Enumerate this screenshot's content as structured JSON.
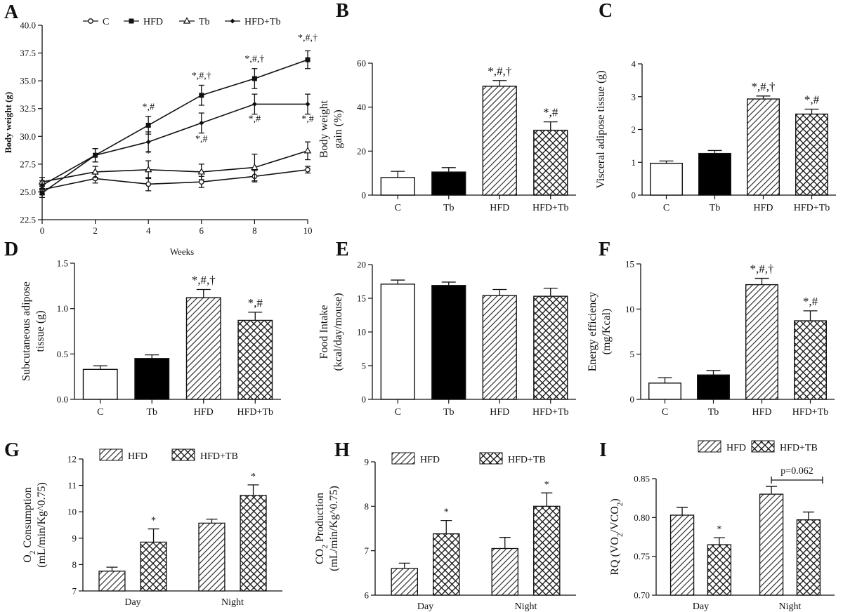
{
  "chart_data": [
    {
      "panel": "A",
      "type": "line",
      "xlabel": "Weeks",
      "ylabel": "Body weight (g)",
      "x": [
        0,
        2,
        4,
        6,
        8,
        10
      ],
      "xlim": [
        0,
        10
      ],
      "ylim": [
        22.5,
        40.0
      ],
      "xticks": [
        "0",
        "2",
        "4",
        "6",
        "8",
        "10"
      ],
      "yticks": [
        "22.5",
        "25.0",
        "27.5",
        "30.0",
        "32.5",
        "35.0",
        "37.5",
        "40.0"
      ],
      "series": [
        {
          "name": "C",
          "marker": "circle-open",
          "values": [
            25.2,
            26.2,
            25.7,
            25.9,
            26.4,
            27.0
          ],
          "errors": [
            0.4,
            0.4,
            0.6,
            0.5,
            0.5,
            0.3
          ]
        },
        {
          "name": "HFD",
          "marker": "square-filled",
          "values": [
            24.9,
            28.3,
            31.0,
            33.7,
            35.2,
            36.9
          ],
          "errors": [
            0.4,
            0.6,
            0.8,
            0.9,
            0.9,
            0.8
          ]
        },
        {
          "name": "Tb",
          "marker": "triangle-open",
          "values": [
            25.9,
            26.8,
            27.0,
            26.8,
            27.2,
            28.7
          ],
          "errors": [
            0.4,
            0.5,
            0.8,
            0.7,
            1.2,
            0.8
          ]
        },
        {
          "name": "HFD+Tb",
          "marker": "diamond-filled",
          "values": [
            25.6,
            28.3,
            29.5,
            31.2,
            32.9,
            32.9
          ],
          "errors": [
            0.4,
            0.6,
            0.9,
            0.9,
            0.9,
            0.9
          ]
        }
      ],
      "annotations": [
        {
          "text": "*,#",
          "x": 4,
          "y": 32.4
        },
        {
          "text": "*",
          "x": 4,
          "y": 28.2
        },
        {
          "text": "*,#,†",
          "x": 6,
          "y": 35.2
        },
        {
          "text": "*,#",
          "x": 6,
          "y": 29.5
        },
        {
          "text": "*,#,†",
          "x": 8,
          "y": 36.7
        },
        {
          "text": "*,#",
          "x": 8,
          "y": 31.3
        },
        {
          "text": "*,#,†",
          "x": 10,
          "y": 38.6
        },
        {
          "text": "*,#",
          "x": 10,
          "y": 31.3
        }
      ]
    },
    {
      "panel": "B",
      "type": "bar",
      "ylabel": "Body weight gain (%)",
      "ylabel_lines": [
        "Body weight",
        "gain (%)"
      ],
      "categories": [
        "C",
        "Tb",
        "HFD",
        "HFD+Tb"
      ],
      "values": [
        8,
        10.5,
        49.5,
        29.5
      ],
      "errors": [
        2.8,
        2.0,
        2.6,
        3.8
      ],
      "fills": [
        "white",
        "black",
        "hatch",
        "crosshatch"
      ],
      "ylim": [
        0,
        60
      ],
      "yticks": [
        "0",
        "20",
        "40",
        "60"
      ],
      "annotations": [
        "",
        "",
        "*,#,†",
        "*,#"
      ]
    },
    {
      "panel": "C",
      "type": "bar",
      "ylabel": "Visceral adipose tissue (g)",
      "ylabel_lines": [
        "Visceral adipose tissue (g)"
      ],
      "categories": [
        "C",
        "Tb",
        "HFD",
        "HFD+Tb"
      ],
      "values": [
        0.97,
        1.27,
        2.93,
        2.47
      ],
      "errors": [
        0.07,
        0.09,
        0.09,
        0.15
      ],
      "fills": [
        "white",
        "black",
        "hatch",
        "crosshatch"
      ],
      "ylim": [
        0,
        4
      ],
      "yticks": [
        "0",
        "1",
        "2",
        "3",
        "4"
      ],
      "annotations": [
        "",
        "",
        "*,#,†",
        "*,#"
      ]
    },
    {
      "panel": "D",
      "type": "bar",
      "ylabel": "Subcutaneous adipose tissue (g)",
      "ylabel_lines": [
        "Subcutaneous adipose",
        "tissue (g)"
      ],
      "categories": [
        "C",
        "Tb",
        "HFD",
        "HFD+Tb"
      ],
      "values": [
        0.33,
        0.45,
        1.12,
        0.87
      ],
      "errors": [
        0.04,
        0.04,
        0.09,
        0.09
      ],
      "fills": [
        "white",
        "black",
        "hatch",
        "crosshatch"
      ],
      "ylim": [
        0,
        1.5
      ],
      "yticks": [
        "0.0",
        "0.5",
        "1.0",
        "1.5"
      ],
      "annotations": [
        "",
        "",
        "*,#,†",
        "*,#"
      ]
    },
    {
      "panel": "E",
      "type": "bar",
      "ylabel": "Food Intake (kcal/day/mouse)",
      "ylabel_lines": [
        "Food Intake",
        "(kcal/day/mouse)"
      ],
      "categories": [
        "C",
        "Tb",
        "HFD",
        "HFD+Tb"
      ],
      "values": [
        17.1,
        16.9,
        15.4,
        15.3
      ],
      "errors": [
        0.6,
        0.5,
        0.9,
        1.2
      ],
      "fills": [
        "white",
        "black",
        "hatch",
        "crosshatch"
      ],
      "ylim": [
        0,
        20
      ],
      "yticks": [
        "0",
        "5",
        "10",
        "15",
        "20"
      ],
      "annotations": [
        "",
        "",
        "",
        ""
      ]
    },
    {
      "panel": "F",
      "type": "bar",
      "ylabel": "Energy efficiency (mg/Kcal)",
      "ylabel_lines": [
        "Energy efficiency",
        "(mg/Kcal)"
      ],
      "categories": [
        "C",
        "Tb",
        "HFD",
        "HFD+Tb"
      ],
      "values": [
        1.8,
        2.7,
        12.7,
        8.7
      ],
      "errors": [
        0.6,
        0.5,
        0.7,
        1.1
      ],
      "fills": [
        "white",
        "black",
        "hatch",
        "crosshatch"
      ],
      "ylim": [
        0,
        15
      ],
      "yticks": [
        "0",
        "5",
        "10",
        "15"
      ],
      "annotations": [
        "",
        "",
        "*,#,†",
        "*,#"
      ]
    },
    {
      "panel": "G",
      "type": "bar",
      "ylabel": "O2 Consumption (mL/min/Kg^0.75)",
      "ylabel_lines": [
        "O2 Consumption",
        "(mL/min/Kg^0.75)"
      ],
      "categories": [
        "Day",
        "Night"
      ],
      "legend": [
        "HFD",
        "HFD+TB"
      ],
      "series": [
        {
          "name": "HFD",
          "fill": "hatch",
          "values": [
            7.75,
            9.57
          ],
          "errors": [
            0.15,
            0.15
          ]
        },
        {
          "name": "HFD+TB",
          "fill": "crosshatch",
          "values": [
            8.85,
            10.62
          ],
          "errors": [
            0.5,
            0.4
          ]
        }
      ],
      "ylim": [
        7,
        12
      ],
      "yticks": [
        "7",
        "8",
        "9",
        "10",
        "11",
        "12"
      ],
      "annotations": [
        [
          "",
          "*"
        ],
        [
          "",
          "*"
        ]
      ]
    },
    {
      "panel": "H",
      "type": "bar",
      "ylabel": "CO2 Production (mL/min/Kg^0.75)",
      "ylabel_lines": [
        "CO2 Production",
        "(mL/min/Kg^0.75)"
      ],
      "categories": [
        "Day",
        "Night"
      ],
      "legend": [
        "HFD",
        "HFD+TB"
      ],
      "series": [
        {
          "name": "HFD",
          "fill": "hatch",
          "values": [
            6.6,
            7.05
          ],
          "errors": [
            0.12,
            0.25
          ]
        },
        {
          "name": "HFD+TB",
          "fill": "crosshatch",
          "values": [
            7.38,
            8.0
          ],
          "errors": [
            0.3,
            0.3
          ]
        }
      ],
      "ylim": [
        6,
        9
      ],
      "yticks": [
        "6",
        "7",
        "8",
        "9"
      ],
      "annotations": [
        [
          "",
          "*"
        ],
        [
          "",
          "*"
        ]
      ]
    },
    {
      "panel": "I",
      "type": "bar",
      "ylabel": "RQ (VO2/VCO2)",
      "ylabel_lines": [
        "RQ (VO2/VCO2)"
      ],
      "categories": [
        "Day",
        "Night"
      ],
      "legend": [
        "HFD",
        "HFD+TB"
      ],
      "series": [
        {
          "name": "HFD",
          "fill": "hatch",
          "values": [
            0.803,
            0.83
          ],
          "errors": [
            0.01,
            0.01
          ]
        },
        {
          "name": "HFD+TB",
          "fill": "crosshatch",
          "values": [
            0.765,
            0.797
          ],
          "errors": [
            0.009,
            0.01
          ]
        }
      ],
      "ylim": [
        0.7,
        0.85
      ],
      "yticks": [
        "0.70",
        "0.75",
        "0.80",
        "0.85"
      ],
      "annotations": [
        [
          "",
          "*"
        ],
        [
          "",
          ""
        ]
      ],
      "bracket_text": "p=0.062"
    }
  ],
  "colors": {
    "ink": "#111111",
    "background": "#ffffff"
  }
}
